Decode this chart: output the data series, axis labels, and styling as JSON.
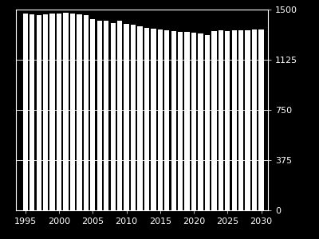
{
  "years": [
    1995,
    1996,
    1997,
    1998,
    1999,
    2000,
    2001,
    2002,
    2003,
    2004,
    2005,
    2006,
    2007,
    2008,
    2009,
    2010,
    2011,
    2012,
    2013,
    2014,
    2015,
    2016,
    2017,
    2018,
    2019,
    2020,
    2021,
    2022,
    2023,
    2024,
    2025,
    2026,
    2027,
    2028,
    2029,
    2030
  ],
  "values": [
    1470,
    1465,
    1460,
    1462,
    1468,
    1470,
    1475,
    1468,
    1462,
    1458,
    1430,
    1415,
    1415,
    1400,
    1418,
    1390,
    1385,
    1375,
    1365,
    1360,
    1350,
    1345,
    1340,
    1335,
    1335,
    1330,
    1320,
    1310,
    1340,
    1345,
    1340,
    1345,
    1345,
    1345,
    1350,
    1350
  ],
  "bar_color": "#ffffff",
  "background_color": "#000000",
  "axes_color": "#ffffff",
  "grid_color": "#ffffff",
  "yticks": [
    0,
    375,
    750,
    1125,
    1500
  ],
  "xticks": [
    1995,
    2000,
    2005,
    2010,
    2015,
    2020,
    2025,
    2030
  ],
  "ylim": [
    0,
    1500
  ],
  "tick_fontsize": 8,
  "bar_width": 0.75
}
